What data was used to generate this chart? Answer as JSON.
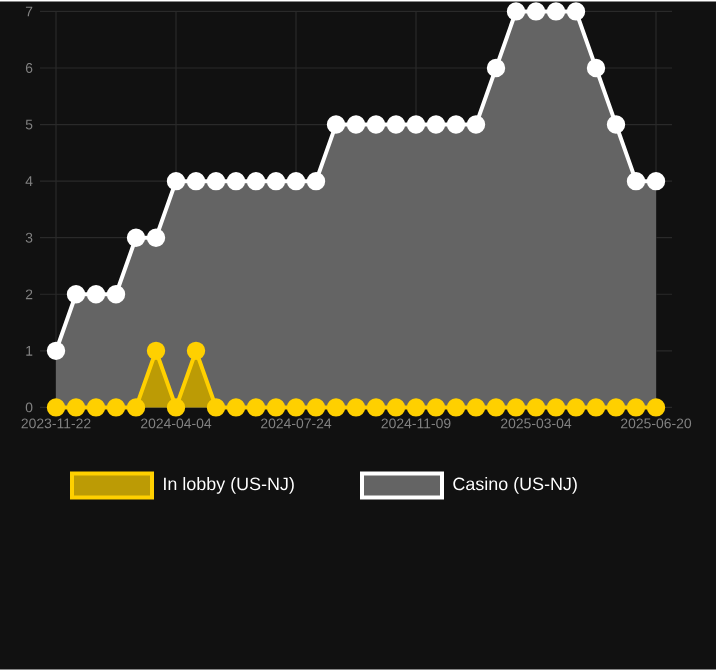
{
  "chart_data": {
    "type": "area",
    "categories": [
      "2023-11-22",
      null,
      null,
      null,
      null,
      null,
      "2024-04-04",
      null,
      null,
      null,
      null,
      null,
      "2024-07-24",
      null,
      null,
      null,
      null,
      null,
      "2024-11-09",
      null,
      null,
      null,
      null,
      null,
      "2025-03-04",
      null,
      null,
      null,
      null,
      null,
      "2025-06-20"
    ],
    "series": [
      {
        "name": "In lobby (US-NJ)",
        "color": "#ffd000",
        "values": [
          0,
          0,
          0,
          0,
          0,
          1,
          0,
          1,
          0,
          0,
          0,
          0,
          0,
          0,
          0,
          0,
          0,
          0,
          0,
          0,
          0,
          0,
          0,
          0,
          0,
          0,
          0,
          0,
          0,
          0,
          0
        ]
      },
      {
        "name": "Casino (US-NJ)",
        "color": "#ffffff",
        "values": [
          1,
          2,
          2,
          2,
          3,
          3,
          4,
          4,
          4,
          4,
          4,
          4,
          4,
          4,
          5,
          5,
          5,
          5,
          5,
          5,
          5,
          5,
          6,
          7,
          7,
          7,
          7,
          6,
          5,
          4,
          4
        ]
      }
    ],
    "ylim": [
      0,
      7
    ],
    "yticks": [
      0,
      1,
      2,
      3,
      4,
      5,
      6,
      7
    ],
    "grid": true,
    "legend": "bottom",
    "marker": "circle"
  }
}
